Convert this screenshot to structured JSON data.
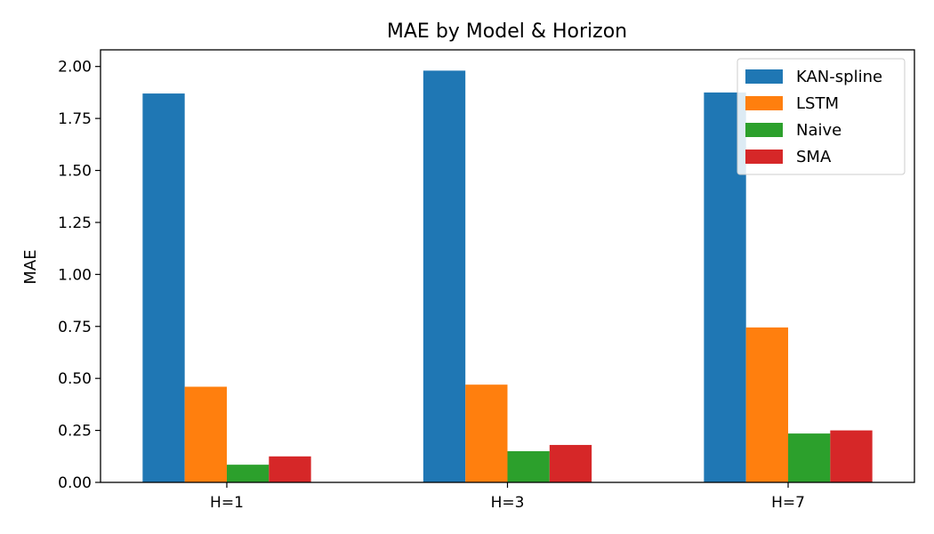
{
  "chart_data": {
    "type": "bar",
    "title": "MAE by Model & Horizon",
    "xlabel": "",
    "ylabel": "MAE",
    "ylim": [
      0,
      2.08
    ],
    "yticks": [
      0.0,
      0.25,
      0.5,
      0.75,
      1.0,
      1.25,
      1.5,
      1.75,
      2.0
    ],
    "ytick_labels": [
      "0.00",
      "0.25",
      "0.50",
      "0.75",
      "1.00",
      "1.25",
      "1.50",
      "1.75",
      "2.00"
    ],
    "categories": [
      "H=1",
      "H=3",
      "H=7"
    ],
    "grid": false,
    "legend_position": "top-right",
    "series": [
      {
        "name": "KAN-spline",
        "color": "#1f77b4",
        "values": [
          1.87,
          1.98,
          1.875
        ]
      },
      {
        "name": "LSTM",
        "color": "#ff7f0e",
        "values": [
          0.46,
          0.47,
          0.745
        ]
      },
      {
        "name": "Naive",
        "color": "#2ca02c",
        "values": [
          0.085,
          0.15,
          0.235
        ]
      },
      {
        "name": "SMA",
        "color": "#d62728",
        "values": [
          0.125,
          0.18,
          0.25
        ]
      }
    ]
  }
}
